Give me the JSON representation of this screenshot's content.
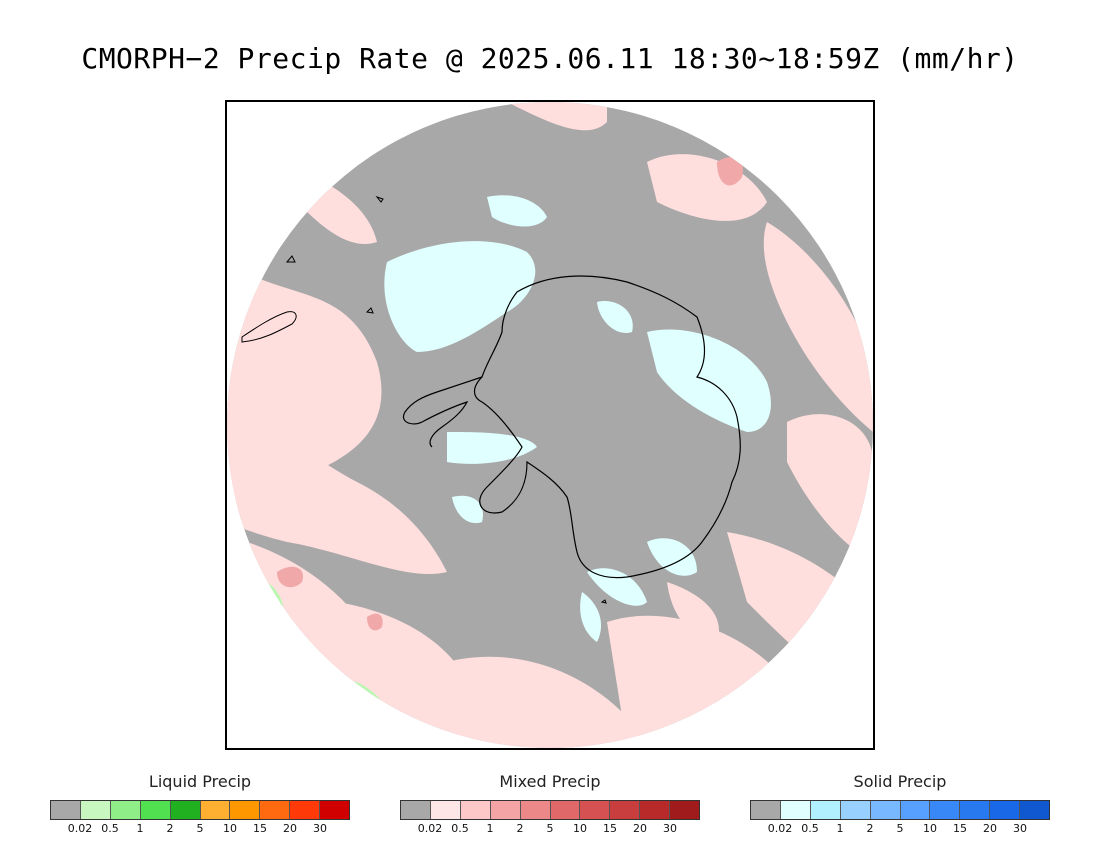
{
  "title": "CMORPH−2 Precip Rate @ 2025.06.11 18:30~18:59Z (mm/hr)",
  "map": {
    "projection": "south-polar-stereographic",
    "background_color": "#a8a8a8",
    "continent_outline_color": "#000000"
  },
  "legends": [
    {
      "title": "Liquid Precip",
      "colors": [
        "#a8a8a8",
        "#c8f8c0",
        "#90ee88",
        "#50e050",
        "#20b020",
        "#ffb030",
        "#ff9800",
        "#ff6a10",
        "#ff3a08",
        "#d00000"
      ],
      "ticks": [
        "0.02",
        "0.5",
        "1",
        "2",
        "5",
        "10",
        "15",
        "20",
        "30"
      ]
    },
    {
      "title": "Mixed Precip",
      "colors": [
        "#a8a8a8",
        "#ffe6e6",
        "#ffc8c8",
        "#f4a4a4",
        "#ec8888",
        "#e06868",
        "#d65252",
        "#c83e3e",
        "#b82a2a",
        "#a01c1c"
      ],
      "ticks": [
        "0.02",
        "0.5",
        "1",
        "2",
        "5",
        "10",
        "15",
        "20",
        "30"
      ]
    },
    {
      "title": "Solid Precip",
      "colors": [
        "#a8a8a8",
        "#e0ffff",
        "#b0f0ff",
        "#98d0ff",
        "#78b8ff",
        "#58a0ff",
        "#3888f8",
        "#2878f0",
        "#1868e8",
        "#1058d0"
      ],
      "ticks": [
        "0.02",
        "0.5",
        "1",
        "2",
        "5",
        "10",
        "15",
        "20",
        "30"
      ]
    }
  ]
}
